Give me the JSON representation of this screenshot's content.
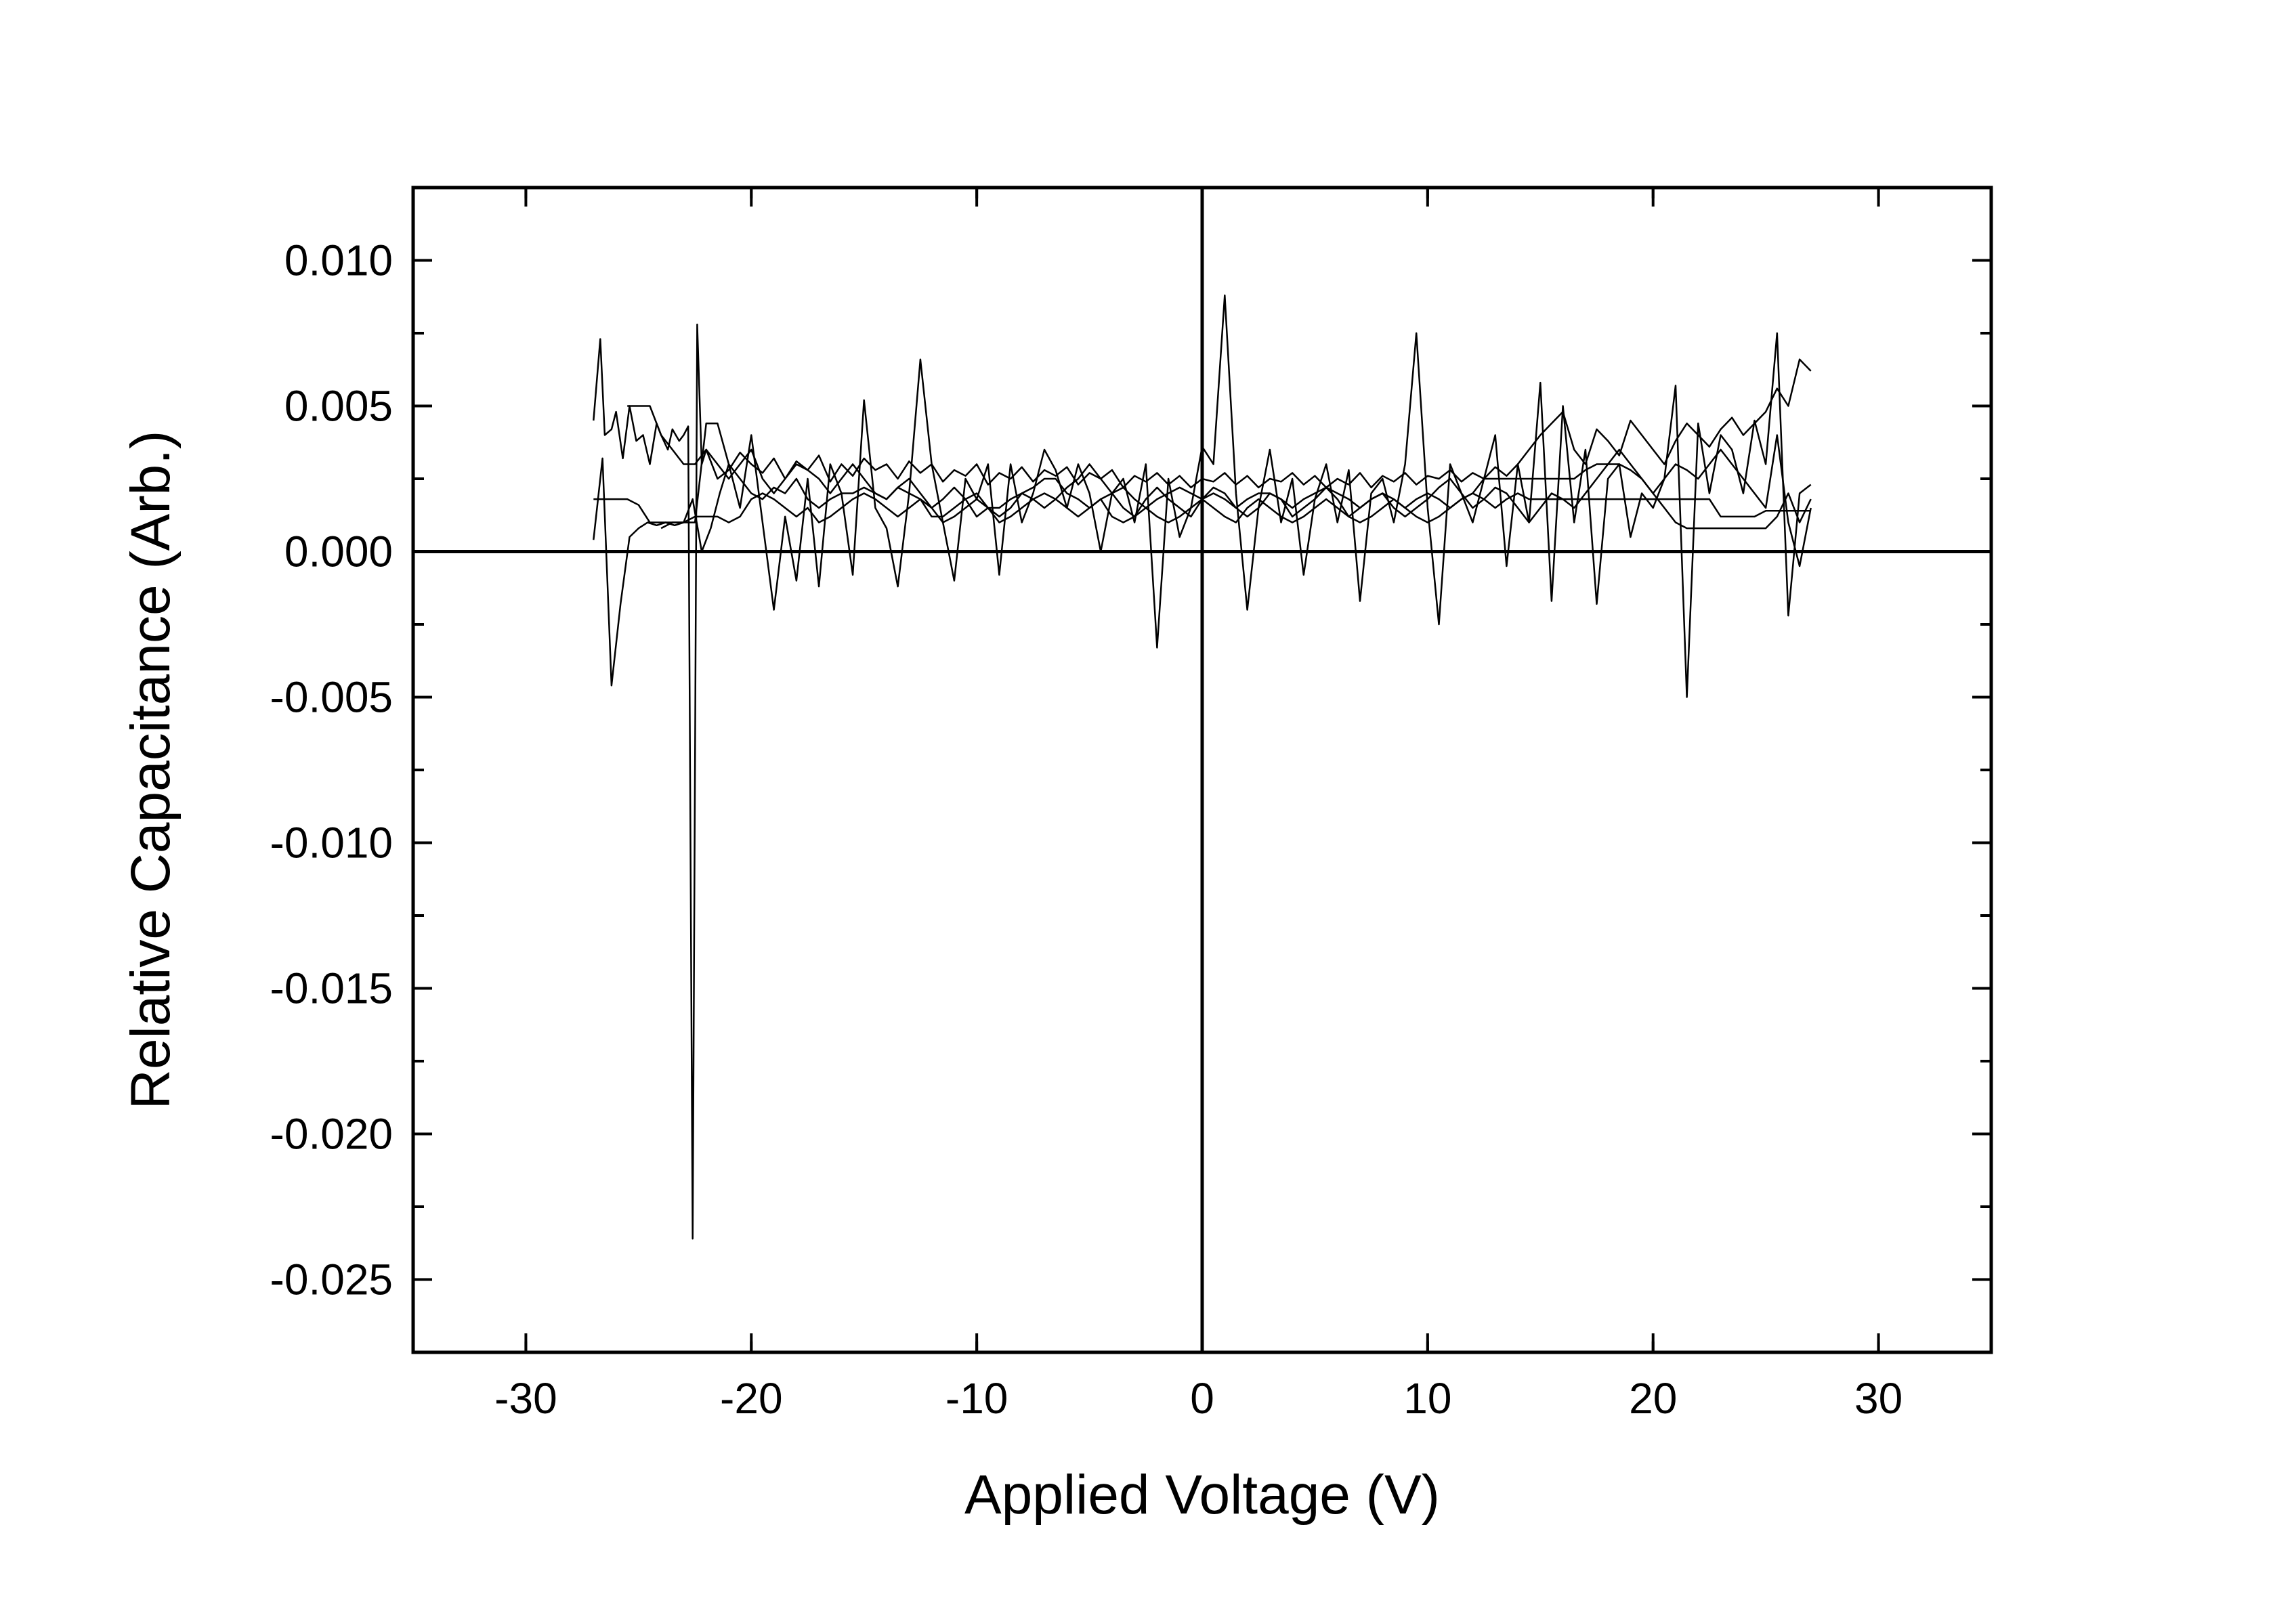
{
  "chart_data": {
    "type": "line",
    "title": "",
    "xlabel": "Applied Voltage (V)",
    "ylabel": "Relative Capacitance (Arb.)",
    "xlim": [
      -35,
      35
    ],
    "ylim": [
      -0.0275,
      0.0125
    ],
    "x_ticks": [
      -30,
      -20,
      -10,
      0,
      10,
      20,
      30
    ],
    "x_tick_labels": [
      "-30",
      "-20",
      "-10",
      "0",
      "10",
      "20",
      "30"
    ],
    "y_ticks": [
      0.01,
      0.005,
      0.0,
      -0.005,
      -0.01,
      -0.015,
      -0.02,
      -0.025
    ],
    "y_tick_labels": [
      "0.010",
      "0.005",
      "0.000",
      "-0.005",
      "-0.010",
      "-0.015",
      "-0.020",
      "-0.025"
    ],
    "grid": false,
    "legend": "none",
    "zero_lines": true,
    "line_color": "#000000",
    "series": [
      {
        "x": [
          -27.0,
          -26.7,
          -26.5,
          -26.2,
          -26.0,
          -25.7,
          -25.4,
          -25.1,
          -24.8,
          -24.5,
          -24.2,
          -24.0,
          -23.7,
          -23.5,
          -23.2,
          -23.0,
          -22.8,
          -22.6,
          -22.4,
          -22.2,
          -22.0,
          -21.5,
          -21.0,
          -20.5,
          -20.0,
          -19.5,
          -19.0,
          -18.5,
          -18.0,
          -17.5,
          -17.0,
          -16.5,
          -16.0,
          -15.5,
          -15.0,
          -14.5,
          -14.0,
          -13.5,
          -13.0,
          -12.5,
          -12.0,
          -11.5,
          -11.0,
          -10.5,
          -10.0,
          -9.5,
          -9.0,
          -8.5,
          -8.0,
          -7.5,
          -7.0,
          -6.5,
          -6.0,
          -5.5,
          -5.0,
          -4.5,
          -4.0,
          -3.5,
          -3.0,
          -2.5,
          -2.0,
          -1.5,
          -1.0,
          -0.5,
          0.0,
          0.5,
          1.0,
          1.5,
          2.0,
          2.5,
          3.0,
          3.5,
          4.0,
          4.5,
          5.0,
          5.5,
          6.0,
          6.5,
          7.0,
          7.5,
          8.0,
          8.5,
          9.0,
          9.5,
          10.0,
          10.5,
          11.0,
          11.5,
          12.0,
          12.5,
          13.0,
          13.5,
          14.0,
          14.5,
          15.0,
          15.5,
          16.0,
          16.5,
          17.0,
          17.5,
          18.0,
          18.5,
          19.0,
          19.5,
          20.0,
          20.5,
          21.0,
          21.5,
          22.0,
          22.5,
          23.0,
          23.5,
          24.0,
          24.5,
          25.0,
          25.5,
          26.0,
          26.5,
          27.0
        ],
        "y": [
          0.0045,
          0.0073,
          0.004,
          0.0042,
          0.0048,
          0.0032,
          0.005,
          0.0038,
          0.004,
          0.003,
          0.0044,
          0.004,
          0.0035,
          0.0042,
          0.0038,
          0.004,
          0.0043,
          -0.0236,
          0.0078,
          0.003,
          0.0035,
          0.0025,
          0.0028,
          0.0034,
          0.003,
          0.0027,
          0.0032,
          0.0025,
          0.0031,
          0.0028,
          0.0033,
          0.0024,
          0.003,
          0.0026,
          0.0032,
          0.0028,
          0.003,
          0.0025,
          0.0031,
          0.0027,
          0.003,
          0.0024,
          0.0028,
          0.0026,
          0.003,
          0.0023,
          0.0027,
          0.0025,
          0.0029,
          0.0024,
          0.0028,
          0.0026,
          0.0029,
          0.0023,
          0.0027,
          0.0025,
          0.0028,
          0.0022,
          0.0026,
          0.0024,
          0.0027,
          0.0023,
          0.0026,
          0.0022,
          0.0025,
          0.0024,
          0.0027,
          0.0023,
          0.0026,
          0.0022,
          0.0025,
          0.0024,
          0.0027,
          0.0023,
          0.0026,
          0.0022,
          0.0025,
          0.0023,
          0.0027,
          0.0022,
          0.0026,
          0.0024,
          0.0027,
          0.0023,
          0.0026,
          0.0025,
          0.0028,
          0.0024,
          0.0027,
          0.0025,
          0.0029,
          0.0026,
          0.003,
          0.0035,
          0.004,
          0.0044,
          0.0048,
          0.0035,
          0.003,
          0.0042,
          0.0038,
          0.0033,
          0.0045,
          0.004,
          0.0035,
          0.003,
          0.0038,
          0.0044,
          0.004,
          0.0036,
          0.0042,
          0.0046,
          0.004,
          0.0044,
          0.0048,
          0.0056,
          0.005,
          0.0066,
          0.0062
        ]
      },
      {
        "x": [
          -27.0,
          -26.6,
          -26.2,
          -25.8,
          -25.4,
          -25.0,
          -24.6,
          -24.2,
          -23.8,
          -23.4,
          -23.0,
          -22.6,
          -22.2,
          -21.8,
          -21.4,
          -21.0,
          -20.5,
          -20.0,
          -19.5,
          -19.0,
          -18.5,
          -18.0,
          -17.5,
          -17.0,
          -16.5,
          -16.0,
          -15.5,
          -15.0,
          -14.5,
          -14.0,
          -13.5,
          -13.0,
          -12.5,
          -12.0,
          -11.5,
          -11.0,
          -10.5,
          -10.0,
          -9.5,
          -9.0,
          -8.5,
          -8.0,
          -7.5,
          -7.0,
          -6.5,
          -6.0,
          -5.5,
          -5.0,
          -4.5,
          -4.0,
          -3.5,
          -3.0,
          -2.5,
          -2.0,
          -1.5,
          -1.0,
          -0.5,
          0.0,
          0.5,
          1.0,
          1.5,
          2.0,
          2.5,
          3.0,
          3.5,
          4.0,
          4.5,
          5.0,
          5.5,
          6.0,
          6.5,
          7.0,
          7.5,
          8.0,
          8.5,
          9.0,
          9.5,
          10.0,
          10.5,
          11.0,
          11.5,
          12.0,
          12.5,
          13.0,
          13.5,
          14.0,
          14.5,
          15.0,
          15.5,
          16.0,
          16.5,
          17.0,
          17.5,
          18.0,
          18.5,
          19.0,
          19.5,
          20.0,
          20.5,
          21.0,
          21.5,
          22.0,
          22.5,
          23.0,
          23.5,
          24.0,
          24.5,
          25.0,
          25.5,
          26.0,
          26.5,
          27.0
        ],
        "y": [
          0.0004,
          0.0032,
          -0.0046,
          -0.0018,
          0.0005,
          0.0008,
          0.001,
          0.0009,
          0.001,
          0.0009,
          0.001,
          0.0018,
          0.0,
          0.0008,
          0.002,
          0.003,
          0.0015,
          0.004,
          0.001,
          -0.002,
          0.0012,
          -0.001,
          0.0025,
          -0.0012,
          0.003,
          0.002,
          -0.0008,
          0.0052,
          0.0015,
          0.0008,
          -0.0012,
          0.002,
          0.0066,
          0.003,
          0.001,
          -0.001,
          0.0025,
          0.0018,
          0.003,
          -0.0008,
          0.003,
          0.001,
          0.002,
          0.0035,
          0.0028,
          0.0015,
          0.003,
          0.002,
          0.0,
          0.002,
          0.0025,
          0.001,
          0.003,
          -0.0033,
          0.0025,
          0.0005,
          0.0015,
          0.0036,
          0.003,
          0.0088,
          0.002,
          -0.002,
          0.0015,
          0.0035,
          0.001,
          0.0025,
          -0.0008,
          0.0018,
          0.003,
          0.001,
          0.0028,
          -0.0017,
          0.002,
          0.0025,
          0.001,
          0.003,
          0.0075,
          0.0015,
          -0.0025,
          0.003,
          0.002,
          0.001,
          0.0025,
          0.004,
          -0.0005,
          0.003,
          0.001,
          0.0058,
          -0.0017,
          0.005,
          0.001,
          0.0035,
          -0.0018,
          0.0025,
          0.003,
          0.0005,
          0.002,
          0.0015,
          0.0025,
          0.0057,
          -0.005,
          0.0044,
          0.002,
          0.004,
          0.0035,
          0.002,
          0.0045,
          0.003,
          0.0075,
          -0.0022,
          0.002,
          0.0023
        ]
      },
      {
        "x": [
          -27.0,
          -26.5,
          -26.0,
          -25.5,
          -25.0,
          -24.5,
          -24.0,
          -23.5,
          -23.0,
          -22.5,
          -22.0,
          -21.5,
          -21.0,
          -20.5,
          -20.0,
          -19.5,
          -19.0,
          -18.5,
          -18.0,
          -17.5,
          -17.0,
          -16.5,
          -16.0,
          -15.5,
          -15.0,
          -14.5,
          -14.0,
          -13.5,
          -13.0,
          -12.5,
          -12.0,
          -11.5,
          -11.0,
          -10.5,
          -10.0,
          -9.5,
          -9.0,
          -8.5,
          -8.0,
          -7.5,
          -7.0,
          -6.5,
          -6.0,
          -5.5,
          -5.0,
          -4.5,
          -4.0,
          -3.5,
          -3.0,
          -2.5,
          -2.0,
          -1.5,
          -1.0,
          -0.5,
          0.0,
          0.5,
          1.0,
          1.5,
          2.0,
          2.5,
          3.0,
          3.5,
          4.0,
          4.5,
          5.0,
          5.5,
          6.0,
          6.5,
          7.0,
          7.5,
          8.0,
          8.5,
          9.0,
          9.5,
          10.0,
          10.5,
          11.0,
          11.5,
          12.0,
          12.5,
          13.0,
          13.5,
          14.0,
          14.5,
          15.0,
          15.5,
          16.0,
          16.5,
          17.0,
          17.5,
          18.0,
          18.5,
          19.0,
          19.5,
          20.0,
          20.5,
          21.0,
          21.5,
          22.0,
          22.5,
          23.0,
          23.5,
          24.0,
          24.5,
          25.0,
          25.5,
          26.0,
          26.5,
          27.0
        ],
        "y": [
          0.0018,
          0.0018,
          0.0018,
          0.0018,
          0.0016,
          0.001,
          0.001,
          0.001,
          0.001,
          0.001,
          0.0044,
          0.0044,
          0.003,
          0.0025,
          0.002,
          0.0018,
          0.0022,
          0.002,
          0.0025,
          0.0018,
          0.0015,
          0.0018,
          0.002,
          0.002,
          0.0022,
          0.002,
          0.0018,
          0.0022,
          0.002,
          0.0018,
          0.0012,
          0.0012,
          0.0015,
          0.0018,
          0.002,
          0.0015,
          0.0015,
          0.0018,
          0.002,
          0.0022,
          0.0025,
          0.0025,
          0.002,
          0.0018,
          0.0015,
          0.0018,
          0.002,
          0.0022,
          0.0018,
          0.0015,
          0.0018,
          0.002,
          0.0022,
          0.002,
          0.0018,
          0.002,
          0.0018,
          0.0015,
          0.0018,
          0.002,
          0.002,
          0.0018,
          0.0015,
          0.0018,
          0.002,
          0.0022,
          0.002,
          0.0018,
          0.0015,
          0.0018,
          0.002,
          0.0018,
          0.0015,
          0.0018,
          0.002,
          0.0018,
          0.0015,
          0.0018,
          0.002,
          0.0018,
          0.0015,
          0.0018,
          0.002,
          0.0018,
          0.0018,
          0.0018,
          0.0018,
          0.0018,
          0.0018,
          0.0018,
          0.0018,
          0.0018,
          0.0018,
          0.0018,
          0.0018,
          0.0018,
          0.0018,
          0.0018,
          0.0018,
          0.0018,
          0.0012,
          0.0012,
          0.0012,
          0.0012,
          0.0014,
          0.0014,
          0.0014,
          0.0014,
          0.0014
        ]
      },
      {
        "x": [
          -25.5,
          -25.0,
          -24.5,
          -24.0,
          -23.5,
          -23.0,
          -22.5,
          -22.0,
          -21.5,
          -21.0,
          -20.5,
          -20.0,
          -19.5,
          -19.0,
          -18.5,
          -18.0,
          -17.5,
          -17.0,
          -16.5,
          -16.0,
          -15.5,
          -15.0,
          -14.5,
          -14.0,
          -13.5,
          -13.0,
          -12.5,
          -12.0,
          -11.5,
          -11.0,
          -10.5,
          -10.0,
          -9.5,
          -9.0,
          -8.5,
          -8.0,
          -7.5,
          -7.0,
          -6.5,
          -6.0,
          -5.5,
          -5.0,
          -4.5,
          -4.0,
          -3.5,
          -3.0,
          -2.5,
          -2.0,
          -1.5,
          -1.0,
          -0.5,
          0.0,
          0.5,
          1.0,
          1.5,
          2.0,
          2.5,
          3.0,
          3.5,
          4.0,
          4.5,
          5.0,
          5.5,
          6.0,
          6.5,
          7.0,
          7.5,
          8.0,
          8.5,
          9.0,
          9.5,
          10.0,
          10.5,
          11.0,
          11.5,
          12.0,
          12.5,
          13.0,
          13.5,
          14.0,
          14.5,
          15.0,
          15.5,
          16.0,
          16.5,
          17.0,
          17.5,
          18.0,
          18.5,
          19.0,
          19.5,
          20.0,
          20.5,
          21.0,
          21.5,
          22.0,
          22.5,
          23.0,
          23.5,
          24.0,
          24.5,
          25.0,
          25.5,
          26.0,
          26.5,
          27.0
        ],
        "y": [
          0.005,
          0.005,
          0.005,
          0.004,
          0.0035,
          0.003,
          0.003,
          0.0035,
          0.003,
          0.0025,
          0.003,
          0.0035,
          0.0025,
          0.002,
          0.0025,
          0.003,
          0.0028,
          0.0025,
          0.002,
          0.0025,
          0.003,
          0.0025,
          0.002,
          0.0018,
          0.0022,
          0.0025,
          0.002,
          0.0015,
          0.0018,
          0.0022,
          0.0018,
          0.0012,
          0.0015,
          0.0012,
          0.0015,
          0.002,
          0.0018,
          0.0015,
          0.0018,
          0.0022,
          0.0025,
          0.003,
          0.0025,
          0.002,
          0.0015,
          0.0012,
          0.0018,
          0.0022,
          0.0018,
          0.0015,
          0.0012,
          0.0018,
          0.0022,
          0.002,
          0.0015,
          0.0012,
          0.0015,
          0.002,
          0.0018,
          0.0012,
          0.0015,
          0.0018,
          0.0022,
          0.0018,
          0.0012,
          0.0015,
          0.0018,
          0.002,
          0.0015,
          0.0012,
          0.0015,
          0.0018,
          0.0022,
          0.0025,
          0.002,
          0.0015,
          0.0018,
          0.0022,
          0.002,
          0.0015,
          0.001,
          0.0015,
          0.002,
          0.0018,
          0.0015,
          0.002,
          0.0025,
          0.003,
          0.0035,
          0.003,
          0.0025,
          0.002,
          0.0025,
          0.003,
          0.0028,
          0.0025,
          0.003,
          0.0035,
          0.003,
          0.0025,
          0.002,
          0.0015,
          0.004,
          0.001,
          -0.0005,
          0.0015
        ]
      },
      {
        "x": [
          -24.0,
          -23.5,
          -23.0,
          -22.5,
          -22.0,
          -21.5,
          -21.0,
          -20.5,
          -20.0,
          -19.5,
          -19.0,
          -18.5,
          -18.0,
          -17.5,
          -17.0,
          -16.5,
          -16.0,
          -15.5,
          -15.0,
          -14.5,
          -14.0,
          -13.5,
          -13.0,
          -12.5,
          -12.0,
          -11.5,
          -11.0,
          -10.5,
          -10.0,
          -9.5,
          -9.0,
          -8.5,
          -8.0,
          -7.5,
          -7.0,
          -6.5,
          -6.0,
          -5.5,
          -5.0,
          -4.5,
          -4.0,
          -3.5,
          -3.0,
          -2.5,
          -2.0,
          -1.5,
          -1.0,
          -0.5,
          0.0,
          0.5,
          1.0,
          1.5,
          2.0,
          2.5,
          3.0,
          3.5,
          4.0,
          4.5,
          5.0,
          5.5,
          6.0,
          6.5,
          7.0,
          7.5,
          8.0,
          8.5,
          9.0,
          9.5,
          10.0,
          10.5,
          11.0,
          11.5,
          12.0,
          12.5,
          13.0,
          13.5,
          14.0,
          14.5,
          15.0,
          15.5,
          16.0,
          16.5,
          17.0,
          17.5,
          18.0,
          18.5,
          19.0,
          19.5,
          20.0,
          20.5,
          21.0,
          21.5,
          22.0,
          22.5,
          23.0,
          23.5,
          24.0,
          24.5,
          25.0,
          25.5,
          26.0,
          26.5,
          27.0
        ],
        "y": [
          0.0008,
          0.001,
          0.001,
          0.0012,
          0.0012,
          0.0012,
          0.001,
          0.0012,
          0.0018,
          0.002,
          0.0018,
          0.0015,
          0.0012,
          0.0015,
          0.001,
          0.0012,
          0.0015,
          0.0018,
          0.002,
          0.0018,
          0.0015,
          0.0012,
          0.0015,
          0.0018,
          0.0015,
          0.001,
          0.0012,
          0.0015,
          0.0018,
          0.0015,
          0.001,
          0.0012,
          0.0015,
          0.0018,
          0.002,
          0.0018,
          0.0015,
          0.0012,
          0.0015,
          0.0018,
          0.0012,
          0.001,
          0.0012,
          0.0015,
          0.0012,
          0.001,
          0.0012,
          0.0015,
          0.0018,
          0.0015,
          0.0012,
          0.001,
          0.0015,
          0.0018,
          0.0015,
          0.0012,
          0.001,
          0.0012,
          0.0015,
          0.0018,
          0.0015,
          0.0012,
          0.001,
          0.0012,
          0.0015,
          0.0018,
          0.0015,
          0.0012,
          0.001,
          0.0012,
          0.0015,
          0.0018,
          0.002,
          0.0025,
          0.0025,
          0.0025,
          0.0025,
          0.0025,
          0.0025,
          0.0025,
          0.0025,
          0.0025,
          0.0028,
          0.003,
          0.003,
          0.003,
          0.0028,
          0.0025,
          0.002,
          0.0015,
          0.001,
          0.0008,
          0.0008,
          0.0008,
          0.0008,
          0.0008,
          0.0008,
          0.0008,
          0.0008,
          0.0012,
          0.002,
          0.001,
          0.0018
        ]
      }
    ]
  }
}
